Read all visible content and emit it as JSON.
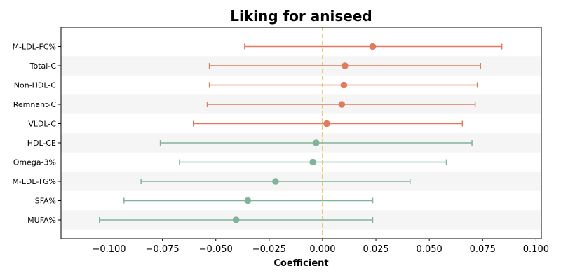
{
  "chart_data": {
    "type": "forest",
    "title": "Liking for aniseed",
    "xlabel": "Coefficient",
    "ylabel": "",
    "xlim": [
      -0.1225,
      0.1025
    ],
    "x_ticks": [
      -0.1,
      -0.075,
      -0.05,
      -0.025,
      0.0,
      0.025,
      0.05,
      0.075,
      0.1
    ],
    "x_tick_labels": [
      "−0.100",
      "−0.075",
      "−0.050",
      "−0.025",
      "0.000",
      "0.025",
      "0.050",
      "0.075",
      "0.100"
    ],
    "reference_line": 0.0,
    "reference_color": "#f0c060",
    "positive_color": "#e07b5f",
    "negative_color": "#80b49a",
    "band_color": "#f5f5f5",
    "grid": false,
    "items": [
      {
        "label": "M-LDL-FC%",
        "estimate": 0.0235,
        "lower": -0.0365,
        "upper": 0.084
      },
      {
        "label": "Total-C",
        "estimate": 0.0105,
        "lower": -0.053,
        "upper": 0.074
      },
      {
        "label": "Non-HDL-C",
        "estimate": 0.01,
        "lower": -0.053,
        "upper": 0.0725
      },
      {
        "label": "Remnant-C",
        "estimate": 0.009,
        "lower": -0.054,
        "upper": 0.0715
      },
      {
        "label": "VLDL-C",
        "estimate": 0.002,
        "lower": -0.0605,
        "upper": 0.0655
      },
      {
        "label": "HDL-CE",
        "estimate": -0.003,
        "lower": -0.076,
        "upper": 0.07
      },
      {
        "label": "Omega-3%",
        "estimate": -0.0045,
        "lower": -0.067,
        "upper": 0.058
      },
      {
        "label": "M-LDL-TG%",
        "estimate": -0.022,
        "lower": -0.085,
        "upper": 0.041
      },
      {
        "label": "SFA%",
        "estimate": -0.035,
        "lower": -0.093,
        "upper": 0.0235
      },
      {
        "label": "MUFA%",
        "estimate": -0.0405,
        "lower": -0.1045,
        "upper": 0.0235
      }
    ]
  }
}
